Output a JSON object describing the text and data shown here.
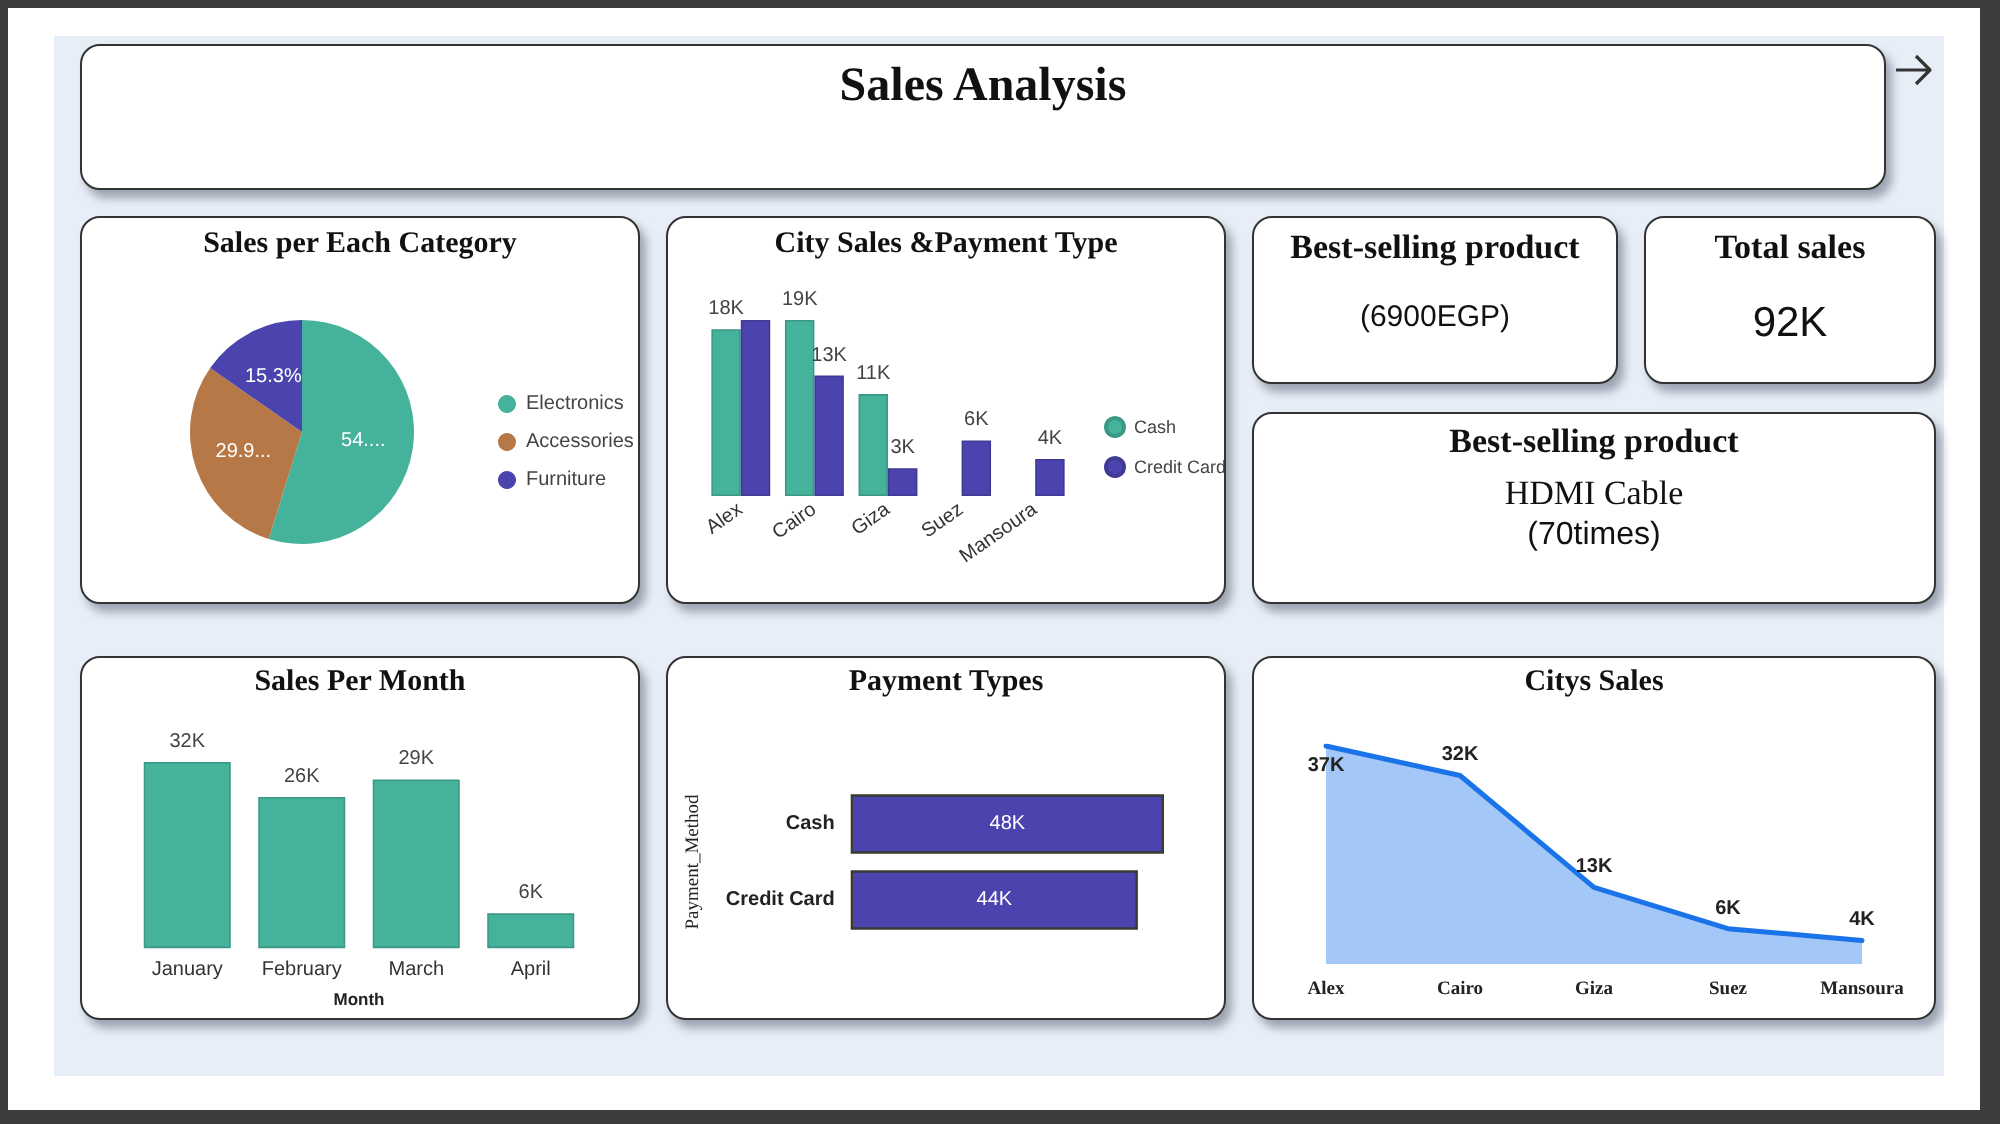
{
  "chart_data": [
    {
      "type": "other",
      "title": "Sales Analysis"
    },
    {
      "type": "pie",
      "title": "Sales per Each Category",
      "categories": [
        "Electronics",
        "Accessories",
        "Furniture"
      ],
      "values": [
        54.8,
        29.9,
        15.3
      ],
      "colors": [
        "#45b39c",
        "#b57846",
        "#4b44ae"
      ],
      "value_labels": [
        "54....",
        "29.9...",
        "15.3%"
      ],
      "legend": "right"
    },
    {
      "type": "bar",
      "title": "City Sales &Payment Type",
      "categories": [
        "Alex",
        "Cairo",
        "Giza",
        "Suez",
        "Mansoura"
      ],
      "series": [
        {
          "name": "Cash",
          "color": "#45b39c",
          "values": [
            18,
            19,
            11,
            null,
            null
          ],
          "value_labels": [
            "18K",
            "19K",
            "11K",
            null,
            null
          ]
        },
        {
          "name": "Credit Card",
          "color": "#4b44ae",
          "values": [
            19,
            13,
            3,
            6,
            4
          ],
          "value_labels": [
            null,
            "13K",
            "3K",
            "6K",
            "4K"
          ]
        }
      ],
      "legend": "right"
    },
    {
      "type": "other",
      "title": "Best-selling product",
      "annotations": [
        "(6900EGP)"
      ]
    },
    {
      "type": "other",
      "title": "Total sales",
      "annotations": [
        "92K"
      ]
    },
    {
      "type": "other",
      "title": "Best-selling product",
      "annotations": [
        "HDMI Cable",
        "(70times)"
      ]
    },
    {
      "type": "bar",
      "title": "Sales Per Month",
      "categories": [
        "January",
        "February",
        "March",
        "April"
      ],
      "values": [
        32,
        26,
        29,
        6
      ],
      "color": "#45b39c",
      "value_labels": [
        "32K",
        "26K",
        "29K",
        "6K"
      ],
      "xlabel": "Month"
    },
    {
      "type": "bar",
      "orientation": "horizontal",
      "title": "Payment Types",
      "categories": [
        "Cash",
        "Credit Card"
      ],
      "values": [
        48,
        44
      ],
      "color": "#4b44ae",
      "value_labels": [
        "48K",
        "44K"
      ],
      "ylabel": "Payment_Method"
    },
    {
      "type": "area",
      "title": "Citys Sales",
      "categories": [
        "Alex",
        "Cairo",
        "Giza",
        "Suez",
        "Mansoura"
      ],
      "values": [
        37,
        32,
        13,
        6,
        4
      ],
      "color": "#1a73e8",
      "value_labels": [
        "37K",
        "32K",
        "13K",
        "6K",
        "4K"
      ]
    }
  ]
}
